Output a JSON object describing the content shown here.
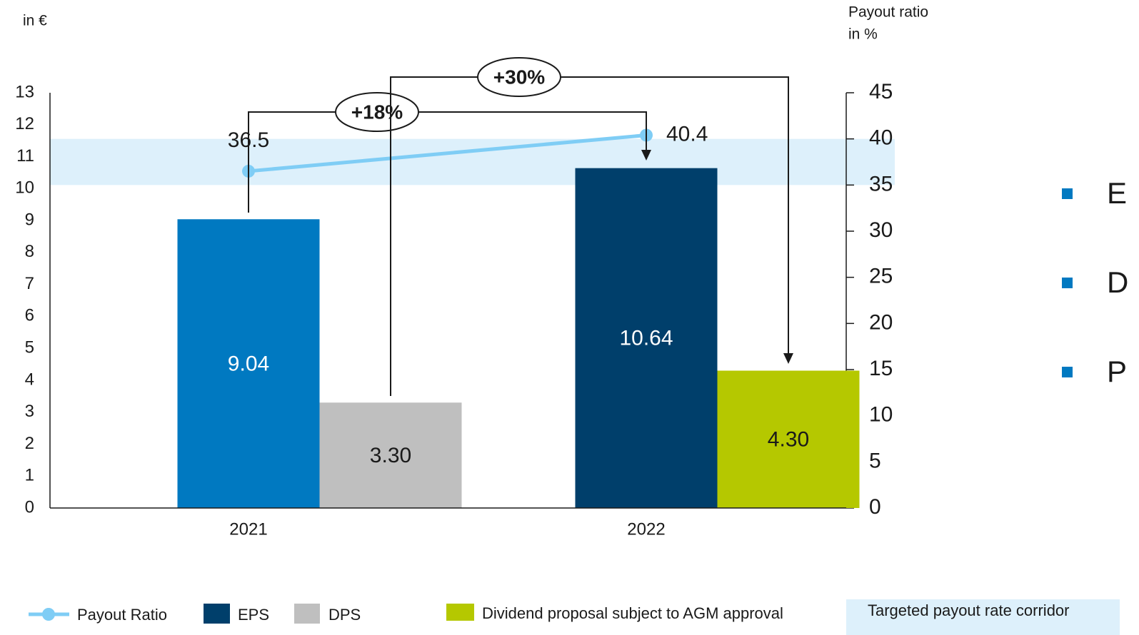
{
  "chart_data": {
    "type": "bar",
    "ylabel": "in €",
    "y2label": [
      "Payout ratio",
      "in %"
    ],
    "categories": [
      "2021",
      "2022"
    ],
    "ylim": [
      0,
      13
    ],
    "yticks": [
      0,
      1,
      2,
      3,
      4,
      5,
      6,
      7,
      8,
      9,
      10,
      11,
      12,
      13
    ],
    "y2lim": [
      0,
      45
    ],
    "y2ticks": [
      0,
      5,
      10,
      15,
      20,
      25,
      30,
      35,
      40,
      45
    ],
    "series": [
      {
        "name": "EPS",
        "color": "#003f6b",
        "colors": [
          "#0079c1",
          "#003f6b"
        ],
        "values": [
          9.04,
          10.64
        ]
      },
      {
        "name": "DPS",
        "color": "#bfbfbf",
        "colors": [
          "#bfbfbf",
          "#b5c800"
        ],
        "values": [
          3.3,
          4.3
        ],
        "value_labels": [
          "3.30",
          "4.30"
        ]
      },
      {
        "name": "Payout Ratio",
        "type": "line",
        "axis": "y2",
        "color": "#7fcdf5",
        "values": [
          36.5,
          40.4
        ]
      }
    ],
    "legend_extra": {
      "label": "Dividend proposal subject to AGM approval",
      "color": "#b5c800"
    },
    "corridor": {
      "label": "Targeted payout rate corridor",
      "range": [
        35,
        40
      ],
      "color": "#ddf0fb"
    },
    "annotations": [
      {
        "text": "+18%",
        "series": 0
      },
      {
        "text": "+30%",
        "series": 1
      }
    ],
    "bullets": [
      "E",
      "D",
      "P"
    ]
  }
}
